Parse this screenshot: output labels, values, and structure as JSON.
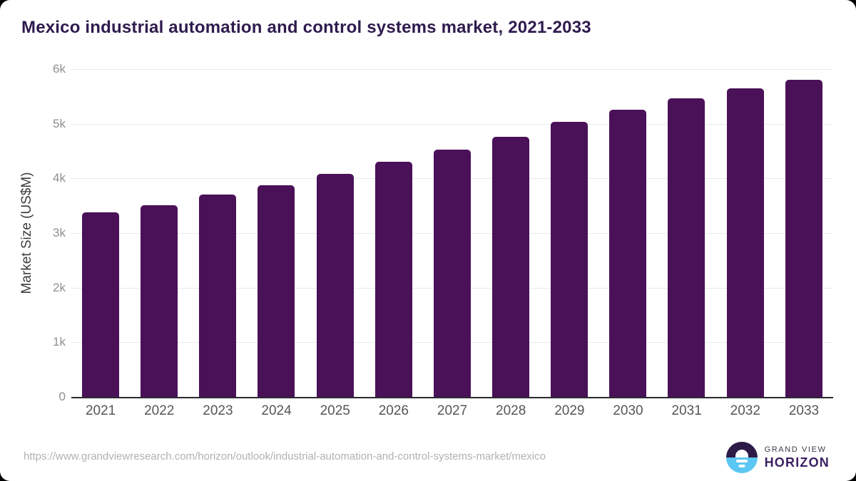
{
  "title": "Mexico industrial automation and control systems market, 2021-2033",
  "chart_data": {
    "type": "bar",
    "title": "Mexico industrial automation and control systems market, 2021-2033",
    "categories": [
      "2021",
      "2022",
      "2023",
      "2024",
      "2025",
      "2026",
      "2027",
      "2028",
      "2029",
      "2030",
      "2031",
      "2032",
      "2033"
    ],
    "values": [
      3380,
      3510,
      3700,
      3880,
      4080,
      4300,
      4520,
      4760,
      5030,
      5260,
      5460,
      5650,
      5800
    ],
    "xlabel": "",
    "ylabel": "Market Size (US$M)",
    "ylim": [
      0,
      6000
    ],
    "y_ticks": [
      {
        "value": 0,
        "label": "0"
      },
      {
        "value": 1000,
        "label": "1k"
      },
      {
        "value": 2000,
        "label": "2k"
      },
      {
        "value": 3000,
        "label": "3k"
      },
      {
        "value": 4000,
        "label": "4k"
      },
      {
        "value": 5000,
        "label": "5k"
      },
      {
        "value": 6000,
        "label": "6k"
      }
    ],
    "grid": "horizontal",
    "legend": "none",
    "bar_color": "#4a1158"
  },
  "colors": {
    "title": "#2f1b4e",
    "bar": "#4a1158",
    "gridline": "#e9e9ec",
    "axis_line": "#2a2a30",
    "logo_purple": "#2e1a47",
    "logo_blue": "#5bc7f2",
    "logo_horizon_text": "#3b2063"
  },
  "footer": {
    "source_url": "https://www.grandviewresearch.com/horizon/outlook/industrial-automation-and-control-systems-market/mexico",
    "logo": {
      "icon": "horizon-sunrise-icon",
      "line1": "GRAND VIEW",
      "line2": "HORIZON"
    }
  }
}
